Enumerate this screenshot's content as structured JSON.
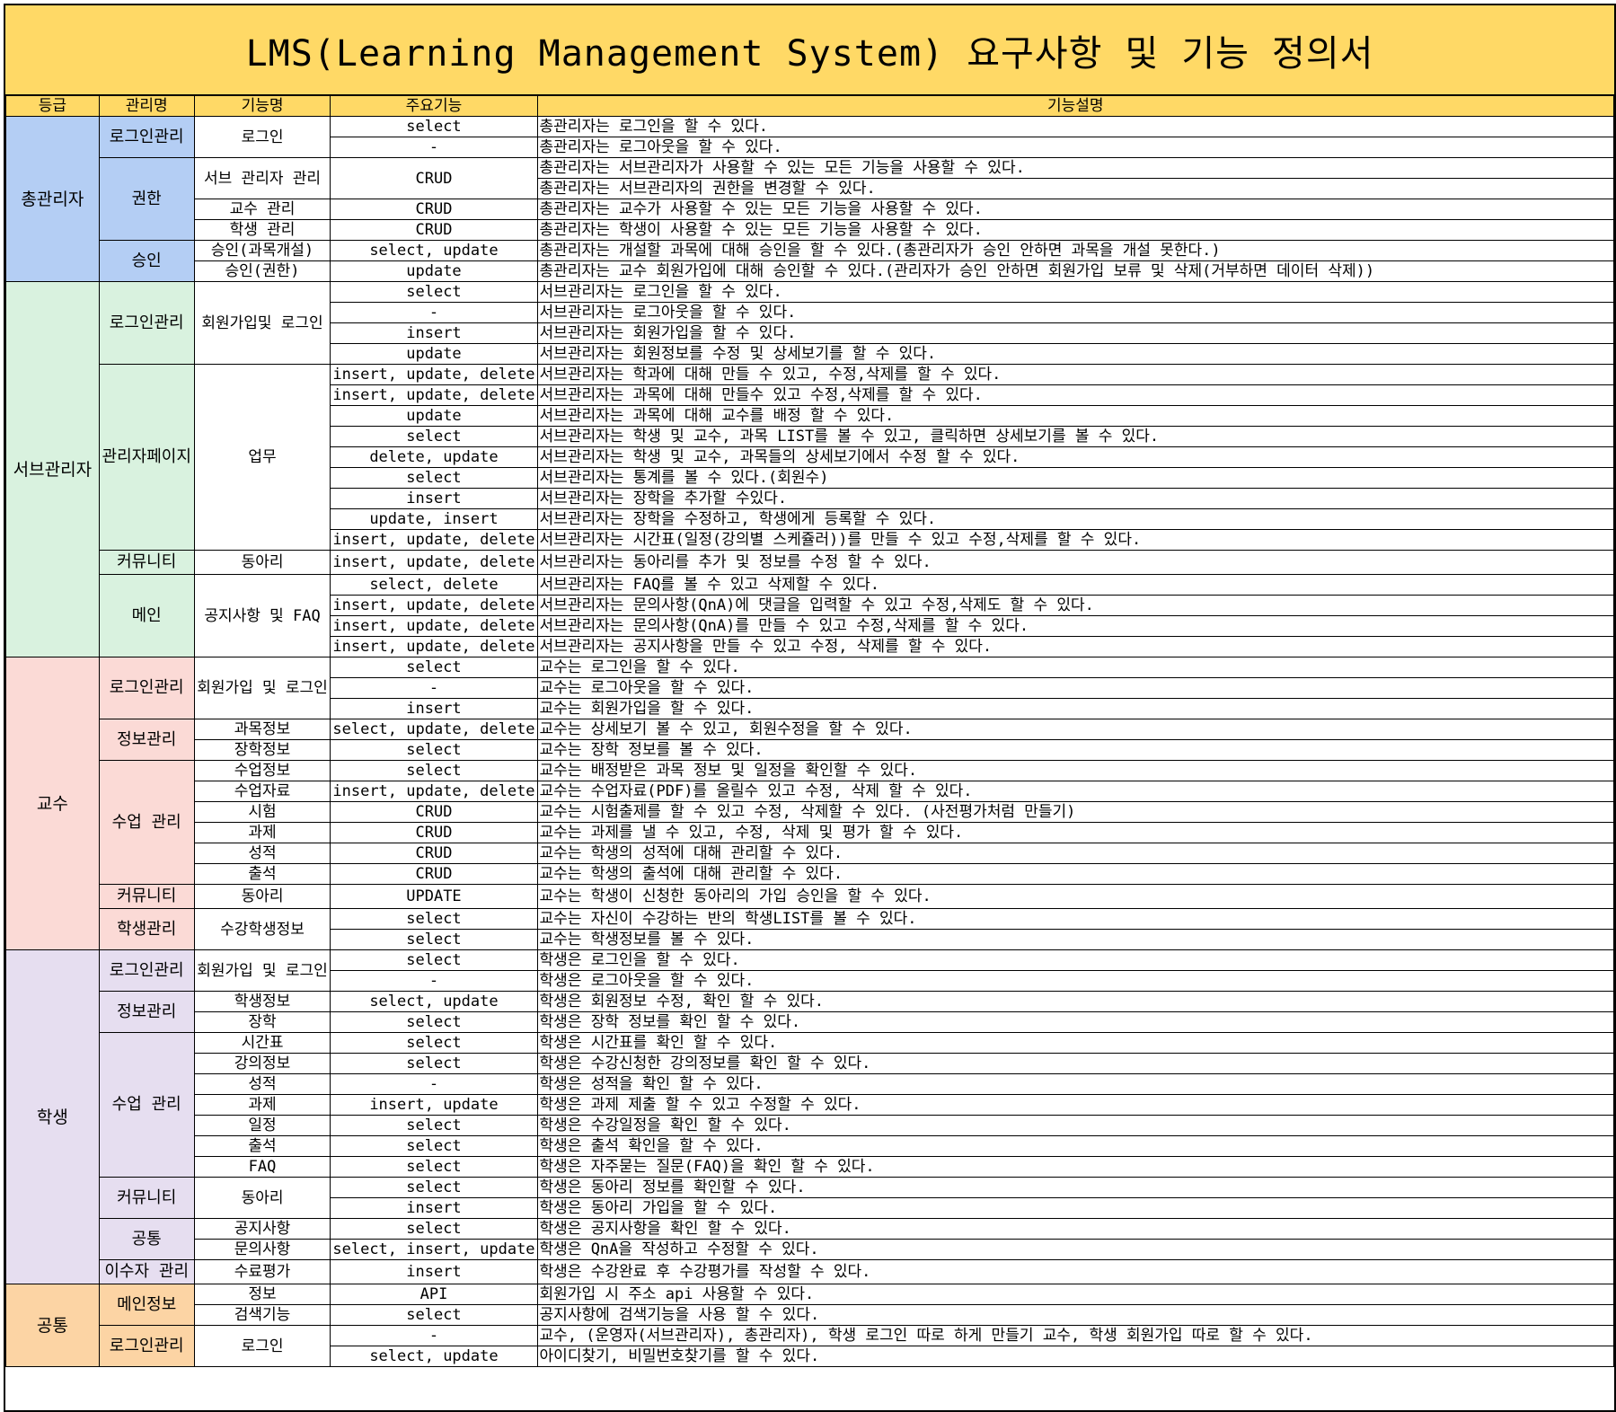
{
  "title": "LMS(Learning Management System) 요구사항 및 기능 정의서",
  "headers": [
    "등급",
    "관리명",
    "기능명",
    "주요기능",
    "기능설명"
  ],
  "grades": [
    {
      "name": "총관리자",
      "class": "g-admin",
      "groups": [
        {
          "mgmt": "로그인관리",
          "features": [
            {
              "name": "로그인",
              "rows": [
                {
                  "op": "select",
                  "desc": "총관리자는 로그인을 할 수 있다."
                },
                {
                  "op": "-",
                  "desc": "총관리자는 로그아웃을 할 수 있다."
                }
              ]
            }
          ]
        },
        {
          "mgmt": "권한",
          "features": [
            {
              "name": "서브 관리자 관리",
              "op": "CRUD",
              "rows": [
                {
                  "desc": "총관리자는 서브관리자가 사용할 수 있는 모든 기능을 사용할 수 있다."
                },
                {
                  "desc": "총관리자는 서브관리자의 권한을 변경할 수 있다."
                }
              ]
            },
            {
              "name": "교수 관리",
              "rows": [
                {
                  "op": "CRUD",
                  "desc": "총관리자는 교수가 사용할 수 있는 모든 기능을 사용할 수 있다."
                }
              ]
            },
            {
              "name": "학생 관리",
              "rows": [
                {
                  "op": "CRUD",
                  "desc": "총관리자는 학생이 사용할 수 있는 모든 기능을 사용할 수 있다."
                }
              ]
            }
          ]
        },
        {
          "mgmt": "승인",
          "features": [
            {
              "name": "승인(과목개설)",
              "rows": [
                {
                  "op": "select, update",
                  "desc": "총관리자는 개설할 과목에 대해 승인을 할 수 있다.(총관리자가 승인 안하면 과목을 개설 못한다.)"
                }
              ]
            },
            {
              "name": "승인(권한)",
              "rows": [
                {
                  "op": "update",
                  "desc": "총관리자는 교수 회원가입에 대해 승인할 수 있다.(관리자가 승인 안하면 회원가입 보류 및 삭제(거부하면 데이터 삭제))"
                }
              ]
            }
          ]
        }
      ]
    },
    {
      "name": "서브관리자",
      "class": "g-sub",
      "groups": [
        {
          "mgmt": "로그인관리",
          "features": [
            {
              "name": "회원가입및 로그인",
              "rows": [
                {
                  "op": "select",
                  "desc": "서브관리자는 로그인을 할 수 있다."
                },
                {
                  "op": "-",
                  "desc": "서브관리자는 로그아웃을 할 수 있다."
                },
                {
                  "op": "insert",
                  "desc": "서브관리자는 회원가입을 할 수 있다."
                },
                {
                  "op": "update",
                  "desc": "서브관리자는 회원정보를 수정 및 상세보기를 할 수 있다."
                }
              ]
            }
          ]
        },
        {
          "mgmt": "관리자페이지",
          "features": [
            {
              "name": "업무",
              "rows": [
                {
                  "op": "insert, update, delete",
                  "desc": "서브관리자는 학과에 대해 만들 수 있고, 수정,삭제를 할 수 있다."
                },
                {
                  "op": "insert, update, delete",
                  "desc": "서브관리자는 과목에 대해 만들수 있고 수정,삭제를 할 수 있다."
                },
                {
                  "op": "update",
                  "desc": "서브관리자는 과목에 대해 교수를 배정 할 수 있다."
                },
                {
                  "op": "select",
                  "desc": "서브관리자는 학생 및 교수, 과목 LIST를 볼 수 있고, 클릭하면 상세보기를 볼 수 있다."
                },
                {
                  "op": "delete, update",
                  "desc": "서브관리자는 학생 및 교수, 과목들의 상세보기에서 수정 할 수 있다."
                },
                {
                  "op": "select",
                  "desc": "서브관리자는 통계를 볼 수 있다.(회원수)"
                },
                {
                  "op": "insert",
                  "desc": "서브관리자는 장학을 추가할 수있다."
                },
                {
                  "op": "update, insert",
                  "desc": "서브관리자는 장학을 수정하고, 학생에게 등록할 수 있다."
                },
                {
                  "op": "insert, update, delete",
                  "desc": "서브관리자는 시간표(일정(강의별 스케쥴러))를 만들 수 있고 수정,삭제를 할 수 있다."
                }
              ]
            }
          ]
        },
        {
          "mgmt": "커뮤니티",
          "features": [
            {
              "name": "동아리",
              "rows": [
                {
                  "op": "insert, update, delete",
                  "desc": "서브관리자는 동아리를 추가  및  정보를 수정 할 수 있다."
                }
              ]
            }
          ]
        },
        {
          "mgmt": "메인",
          "features": [
            {
              "name": "공지사항 및 FAQ",
              "rows": [
                {
                  "op": "select, delete",
                  "desc": "서브관리자는 FAQ를 볼 수 있고 삭제할 수 있다."
                },
                {
                  "op": "insert, update, delete",
                  "desc": "서브관리자는 문의사항(QnA)에 댓글을 입력할 수 있고 수정,삭제도 할 수 있다."
                },
                {
                  "op": "insert, update, delete",
                  "desc": "서브관리자는 문의사항(QnA)를 만들 수 있고 수정,삭제를 할 수 있다."
                },
                {
                  "op": "insert, update, delete",
                  "desc": "서브관리자는 공지사항을 만들 수 있고 수정, 삭제를 할 수 있다."
                }
              ]
            }
          ]
        }
      ]
    },
    {
      "name": "교수",
      "class": "g-prof",
      "groups": [
        {
          "mgmt": "로그인관리",
          "features": [
            {
              "name": "회원가입 및 로그인",
              "rows": [
                {
                  "op": "select",
                  "desc": "교수는 로그인을 할 수 있다."
                },
                {
                  "op": "-",
                  "desc": "교수는 로그아웃을 할 수 있다."
                },
                {
                  "op": "insert",
                  "desc": "교수는 회원가입을 할 수 있다."
                }
              ]
            }
          ]
        },
        {
          "mgmt": "정보관리",
          "features": [
            {
              "name": "과목정보",
              "rows": [
                {
                  "op": "select, update, delete",
                  "desc": "교수는 상세보기 볼 수 있고, 회원수정을 할 수 있다."
                }
              ]
            },
            {
              "name": "장학정보",
              "rows": [
                {
                  "op": "select",
                  "desc": "교수는 장학 정보를 볼 수 있다."
                }
              ]
            }
          ]
        },
        {
          "mgmt": "수업 관리",
          "features": [
            {
              "name": "수업정보",
              "rows": [
                {
                  "op": "select",
                  "desc": "교수는 배정받은 과목 정보 및 일정을 확인할 수 있다."
                }
              ]
            },
            {
              "name": "수업자료",
              "rows": [
                {
                  "op": "insert, update, delete",
                  "desc": "교수는 수업자료(PDF)를 올릴수 있고 수정, 삭제 할 수 있다."
                }
              ]
            },
            {
              "name": "시험",
              "rows": [
                {
                  "op": "CRUD",
                  "desc": "교수는 시험출제를 할 수 있고 수정, 삭제할 수 있다. (사전평가처럼 만들기)"
                }
              ]
            },
            {
              "name": "과제",
              "rows": [
                {
                  "op": "CRUD",
                  "desc": "교수는 과제를 낼 수 있고, 수정, 삭제 및 평가 할 수 있다."
                }
              ]
            },
            {
              "name": "성적",
              "rows": [
                {
                  "op": "CRUD",
                  "desc": "교수는 학생의 성적에 대해 관리할 수 있다."
                }
              ]
            },
            {
              "name": "출석",
              "rows": [
                {
                  "op": "CRUD",
                  "desc": "교수는 학생의 출석에 대해 관리할 수 있다."
                }
              ]
            }
          ]
        },
        {
          "mgmt": "커뮤니티",
          "features": [
            {
              "name": "동아리",
              "rows": [
                {
                  "op": "UPDATE",
                  "desc": "교수는 학생이 신청한 동아리의 가입 승인을 할 수 있다."
                }
              ]
            }
          ]
        },
        {
          "mgmt": "학생관리",
          "features": [
            {
              "name": "수강학생정보",
              "rows": [
                {
                  "op": "select",
                  "desc": "교수는 자신이 수강하는 반의 학생LIST를 볼 수 있다."
                },
                {
                  "op": "select",
                  "desc": "교수는 학생정보를 볼 수 있다."
                }
              ]
            }
          ]
        }
      ]
    },
    {
      "name": "학생",
      "class": "g-stud",
      "groups": [
        {
          "mgmt": "로그인관리",
          "features": [
            {
              "name": "회원가입 및 로그인",
              "rows": [
                {
                  "op": "select",
                  "desc": "학생은 로그인을 할 수 있다."
                },
                {
                  "op": "-",
                  "desc": "학생은 로그아웃을 할 수 있다."
                }
              ]
            }
          ]
        },
        {
          "mgmt": "정보관리",
          "features": [
            {
              "name": "학생정보",
              "rows": [
                {
                  "op": "select, update",
                  "desc": "학생은 회원정보 수정, 확인 할 수 있다."
                }
              ]
            },
            {
              "name": "장학",
              "rows": [
                {
                  "op": "select",
                  "desc": "학생은 장학 정보를 확인 할 수 있다."
                }
              ]
            }
          ]
        },
        {
          "mgmt": "수업 관리",
          "features": [
            {
              "name": "시간표",
              "rows": [
                {
                  "op": "select",
                  "desc": "학생은 시간표를 확인 할 수 있다."
                }
              ]
            },
            {
              "name": "강의정보",
              "rows": [
                {
                  "op": "select",
                  "desc": "학생은 수강신청한 강의정보를 확인 할 수 있다."
                }
              ]
            },
            {
              "name": "성적",
              "rows": [
                {
                  "op": "-",
                  "desc": "학생은 성적을 확인 할 수 있다."
                }
              ]
            },
            {
              "name": "과제",
              "rows": [
                {
                  "op": "insert, update",
                  "desc": "학생은 과제 제출 할 수 있고 수정할 수 있다."
                }
              ]
            },
            {
              "name": "일정",
              "rows": [
                {
                  "op": "select",
                  "desc": "학생은 수강일정을 확인 할 수 있다."
                }
              ]
            },
            {
              "name": "출석",
              "rows": [
                {
                  "op": "select",
                  "desc": "학생은 출석 확인을 할 수 있다."
                }
              ]
            },
            {
              "name": "FAQ",
              "rows": [
                {
                  "op": "select",
                  "desc": "학생은 자주묻는 질문(FAQ)을 확인 할 수 있다."
                }
              ]
            }
          ]
        },
        {
          "mgmt": "커뮤니티",
          "features": [
            {
              "name": "동아리",
              "rows": [
                {
                  "op": "select",
                  "desc": "학생은 동아리 정보를 확인할 수 있다."
                },
                {
                  "op": "insert",
                  "desc": "학생은 동아리 가입을 할 수 있다."
                }
              ]
            }
          ]
        },
        {
          "mgmt": "공통",
          "features": [
            {
              "name": "공지사항",
              "rows": [
                {
                  "op": "select",
                  "desc": "학생은 공지사항을 확인 할 수 있다."
                }
              ]
            },
            {
              "name": "문의사항",
              "rows": [
                {
                  "op": "select, insert, update",
                  "desc": "학생은 QnA을 작성하고 수정할 수 있다."
                }
              ]
            }
          ]
        },
        {
          "mgmt": "이수자 관리",
          "features": [
            {
              "name": "수료평가",
              "rows": [
                {
                  "op": "insert",
                  "desc": "학생은 수강완료 후 수강평가를 작성할 수 있다."
                }
              ]
            }
          ]
        }
      ]
    },
    {
      "name": "공통",
      "class": "g-common",
      "groups": [
        {
          "mgmt": "메인정보",
          "features": [
            {
              "name": "정보",
              "rows": [
                {
                  "op": "API",
                  "desc": "회원가입 시 주소 api 사용할 수 있다."
                }
              ]
            },
            {
              "name": "검색기능",
              "rows": [
                {
                  "op": "select",
                  "desc": "공지사항에 검색기능을 사용 할 수 있다."
                }
              ]
            }
          ]
        },
        {
          "mgmt": "로그인관리",
          "features": [
            {
              "name": "로그인",
              "rows": [
                {
                  "op": "-",
                  "desc": "교수, (운영자(서브관리자), 총관리자), 학생 로그인 따로 하게 만들기 교수, 학생 회원가입 따로 할 수 있다."
                },
                {
                  "op": "select, update",
                  "desc": "아이디찾기, 비밀번호찾기를 할 수 있다."
                }
              ]
            }
          ]
        }
      ]
    }
  ]
}
